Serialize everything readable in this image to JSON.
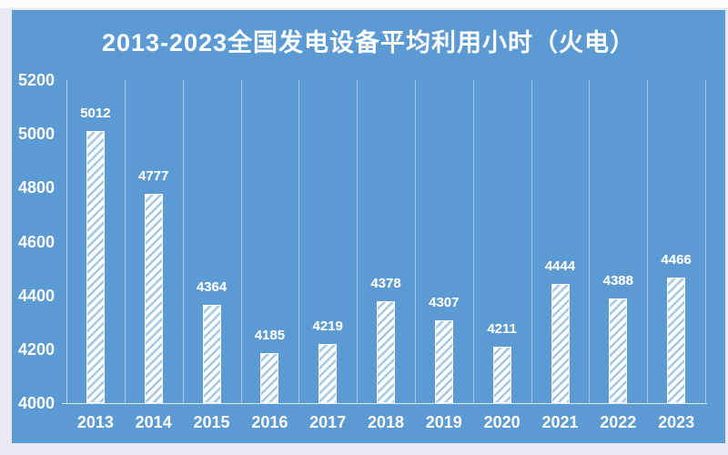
{
  "window": {
    "outer_background": "#e9eaf3"
  },
  "chart_data": {
    "type": "bar",
    "title": "2013-2023全国发电设备平均利用小时（火电）",
    "categories": [
      "2013",
      "2014",
      "2015",
      "2016",
      "2017",
      "2018",
      "2019",
      "2020",
      "2021",
      "2022",
      "2023"
    ],
    "values": [
      5012,
      4777,
      4364,
      4185,
      4219,
      4378,
      4307,
      4211,
      4444,
      4388,
      4466
    ],
    "xlabel": "",
    "ylabel": "",
    "ylim": [
      4000,
      5200
    ],
    "yticks": [
      5200,
      5000,
      4800,
      4600,
      4400,
      4200,
      4000
    ],
    "grid": "vertical-gridlines-only",
    "legend": "none",
    "data_labels": "above-bars",
    "bar_style": "white upward diagonal hatch with white outline",
    "colors": {
      "panel": "#5b9ad3",
      "text": "#ffffff",
      "gridline": "rgba(255,255,255,0.45)",
      "axis_line": "rgba(255,255,255,0.8)",
      "hatch_stripe": "#a5c8e6",
      "outer_background": "#e9eaf3"
    }
  }
}
